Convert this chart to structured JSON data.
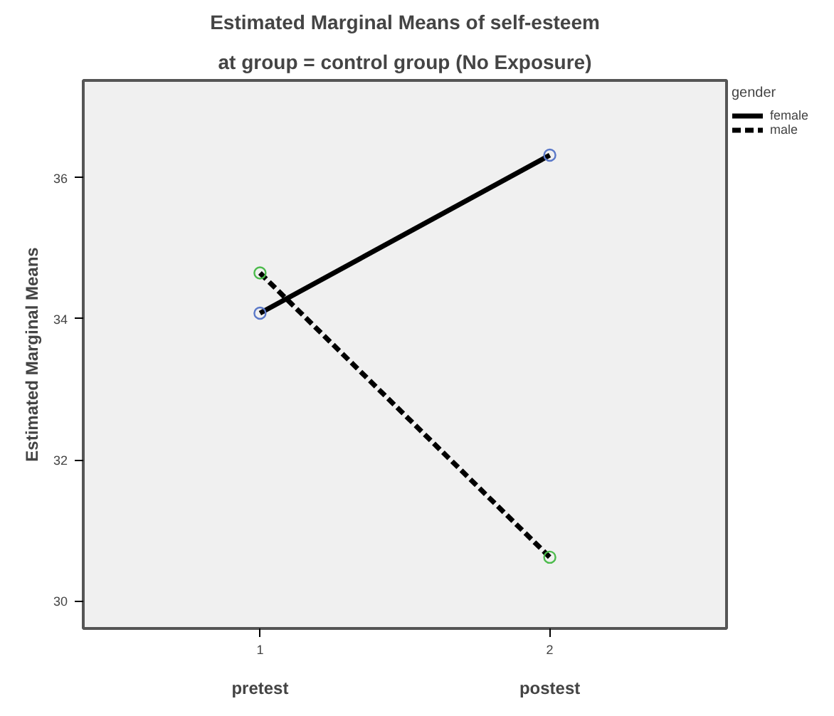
{
  "chart_data": {
    "type": "line",
    "title": "Estimated Marginal Means of self-esteem",
    "subtitle": "at group = control group (No Exposure)",
    "ylabel": "Estimated Marginal Means",
    "legend_title": "gender",
    "x": [
      1,
      2
    ],
    "xlim": [
      0.39,
      2.61
    ],
    "xticks": [
      1,
      2
    ],
    "ylim": [
      29.61,
      37.38
    ],
    "yticks": [
      30,
      32,
      34,
      36
    ],
    "annotations": [
      "pretest",
      "postest"
    ],
    "marker": "circle",
    "grid": false,
    "legend": "top right",
    "series": [
      {
        "name": "female",
        "color": "#000000",
        "colors": [
          "#5a78c8",
          "#5a78c8"
        ],
        "line_style": "solid",
        "values": [
          34.08,
          36.32
        ]
      },
      {
        "name": "male",
        "color": "#000000",
        "colors": [
          "#4cbb4c",
          "#4cbb4c"
        ],
        "line_style": "dashed",
        "values": [
          34.65,
          30.62
        ]
      }
    ]
  }
}
